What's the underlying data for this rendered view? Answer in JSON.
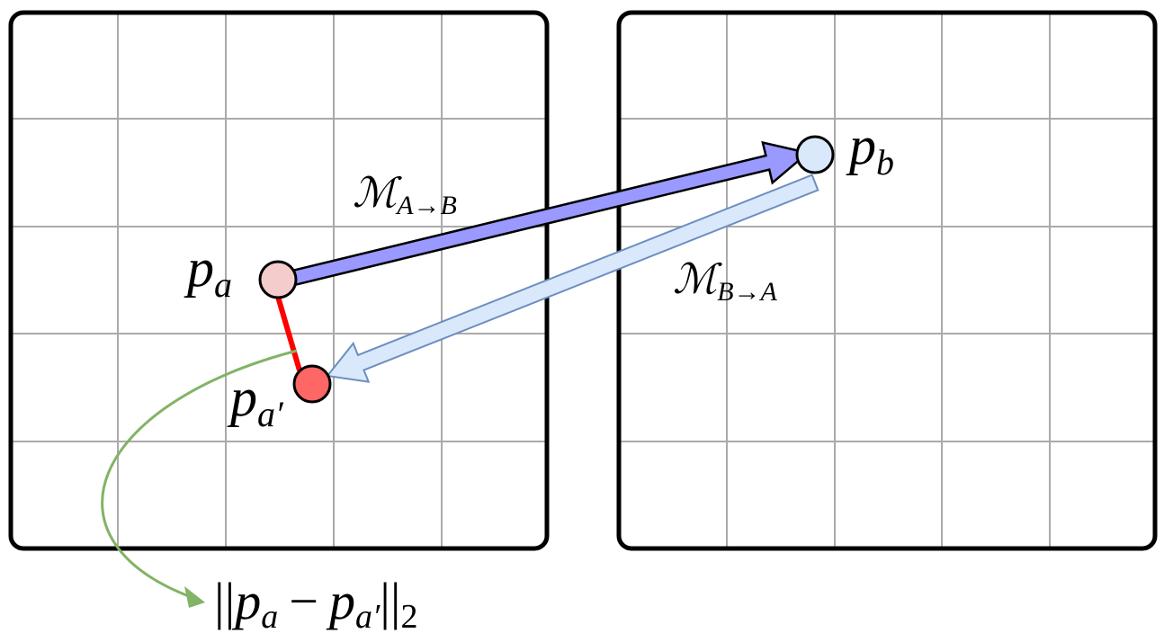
{
  "nodes": [
    {
      "base": "p",
      "sub": "a"
    },
    {
      "base": "p",
      "sub": "b"
    },
    {
      "base": "p",
      "sub": "a′"
    }
  ],
  "edges": [
    {
      "base": "ℳ",
      "sub": "A→B"
    },
    {
      "base": "ℳ",
      "sub": "B→A"
    }
  ],
  "distance": {
    "open": "||",
    "p1": "p",
    "s1": "a",
    "minus": "−",
    "p2": "p",
    "s2": "a′",
    "close": "||",
    "sub": "2"
  }
}
